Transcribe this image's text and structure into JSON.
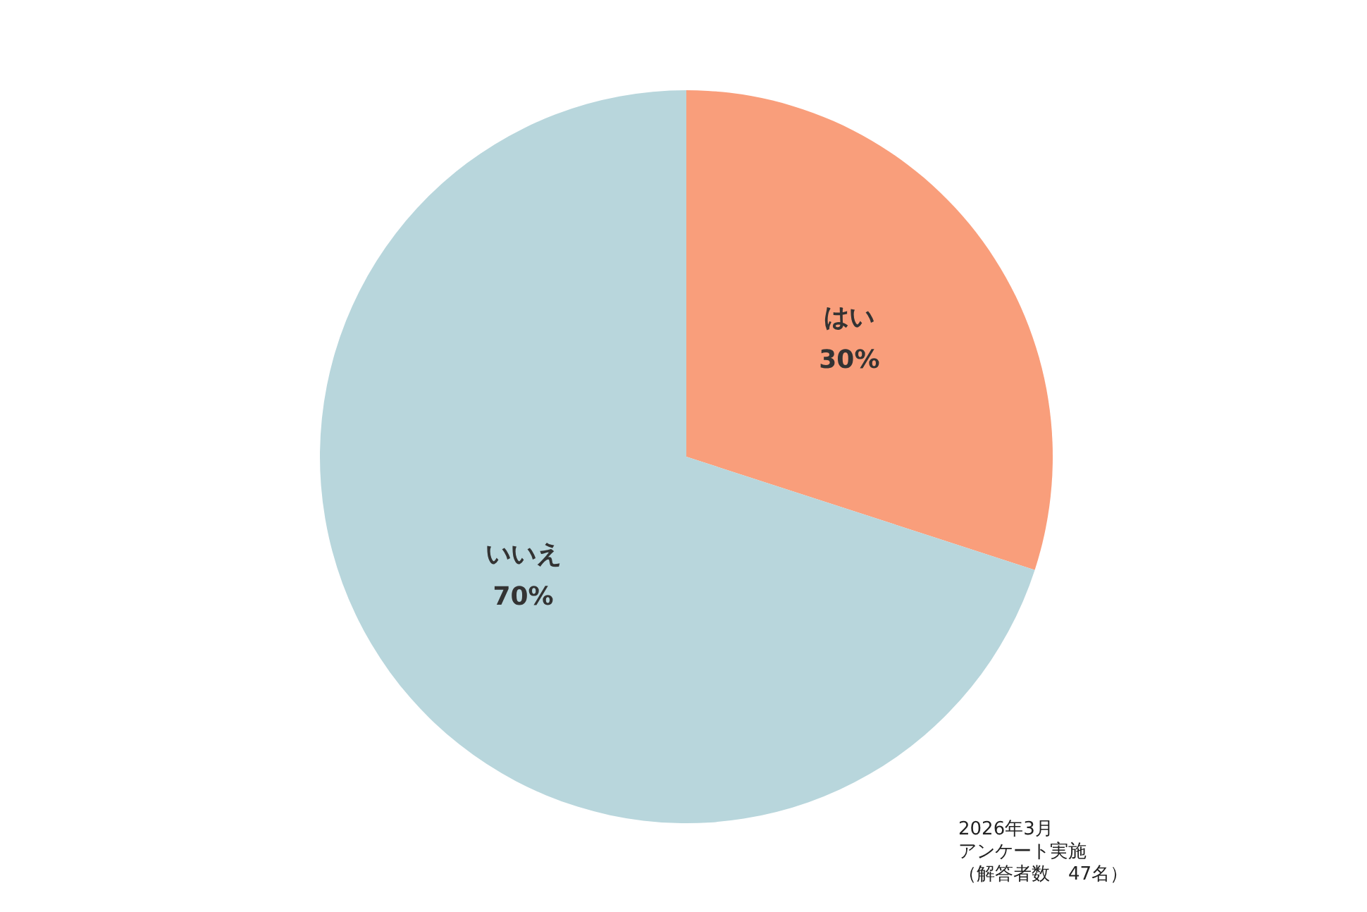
{
  "chart_data": {
    "type": "pie",
    "categories": [
      "はい",
      "いいえ"
    ],
    "values": [
      30,
      70
    ],
    "colors": [
      "#f99e7b",
      "#b8d6dc"
    ],
    "value_labels": [
      "30%",
      "70%"
    ],
    "annotations": [
      "2026年3月",
      "アンケート実施",
      "（解答者数　47名）"
    ]
  }
}
